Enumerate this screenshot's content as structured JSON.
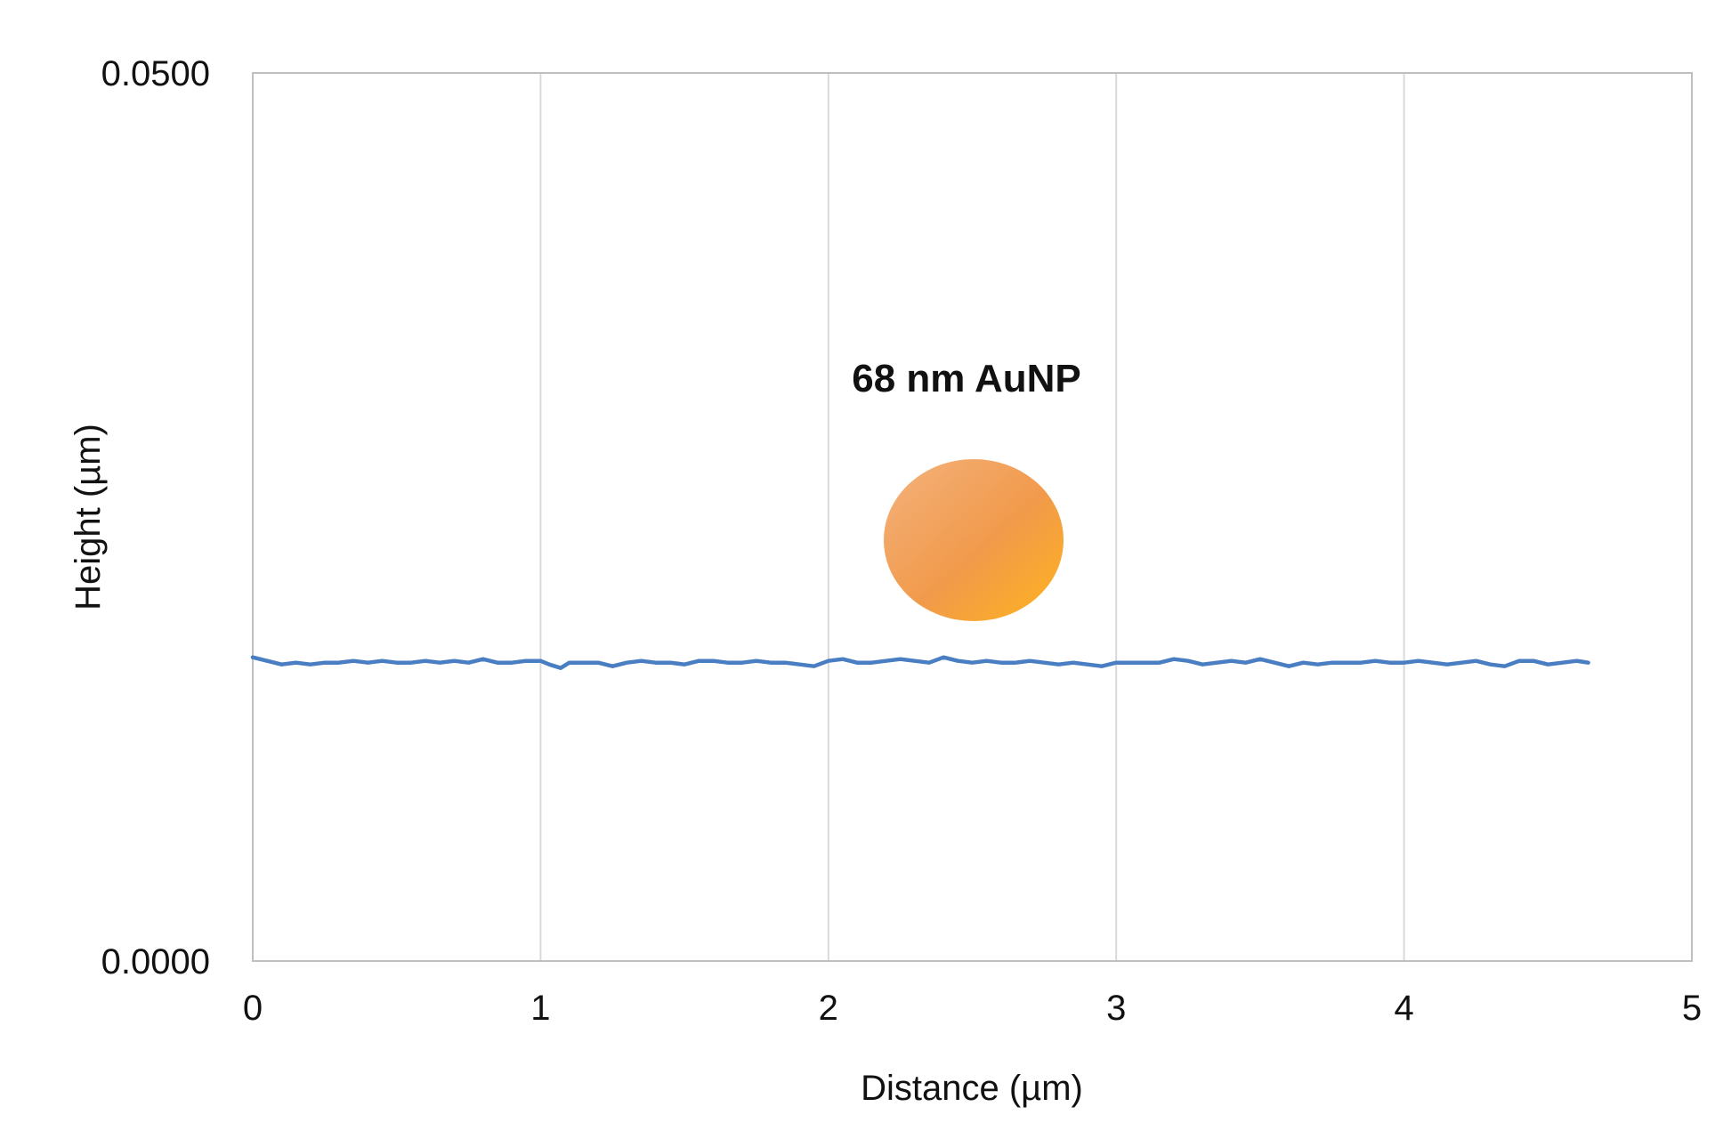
{
  "chart_data": {
    "type": "line",
    "title": "",
    "xlabel": "Distance (µm)",
    "ylabel": "Height (µm)",
    "xlim": [
      0,
      5
    ],
    "ylim": [
      0.0,
      0.05
    ],
    "x_ticks": [
      0,
      1,
      2,
      3,
      4,
      5
    ],
    "x_tick_labels": [
      "0",
      "1",
      "2",
      "3",
      "4",
      "5"
    ],
    "y_ticks": [
      0.0,
      0.05
    ],
    "y_tick_labels": [
      "0.0000",
      "0.0500"
    ],
    "grid": {
      "vertical": true,
      "horizontal": false
    },
    "series": [
      {
        "color": "#4A7EC2",
        "x": [
          0.0,
          0.05,
          0.1,
          0.15,
          0.2,
          0.25,
          0.3,
          0.35,
          0.4,
          0.45,
          0.5,
          0.55,
          0.6,
          0.65,
          0.7,
          0.75,
          0.8,
          0.85,
          0.9,
          0.95,
          1.0,
          1.03,
          1.07,
          1.1,
          1.15,
          1.2,
          1.25,
          1.3,
          1.35,
          1.4,
          1.45,
          1.5,
          1.55,
          1.6,
          1.65,
          1.7,
          1.75,
          1.8,
          1.85,
          1.9,
          1.95,
          2.0,
          2.05,
          2.1,
          2.15,
          2.2,
          2.25,
          2.3,
          2.35,
          2.4,
          2.45,
          2.5,
          2.55,
          2.6,
          2.65,
          2.7,
          2.75,
          2.8,
          2.85,
          2.9,
          2.95,
          3.0,
          3.05,
          3.1,
          3.15,
          3.2,
          3.25,
          3.3,
          3.35,
          3.4,
          3.45,
          3.5,
          3.55,
          3.6,
          3.65,
          3.7,
          3.75,
          3.8,
          3.85,
          3.9,
          3.95,
          4.0,
          4.05,
          4.1,
          4.15,
          4.2,
          4.25,
          4.3,
          4.35,
          4.4,
          4.45,
          4.5,
          4.55,
          4.6,
          4.64
        ],
        "y": [
          0.0171,
          0.0169,
          0.0167,
          0.0168,
          0.0167,
          0.0168,
          0.0168,
          0.0169,
          0.0168,
          0.0169,
          0.0168,
          0.0168,
          0.0169,
          0.0168,
          0.0169,
          0.0168,
          0.017,
          0.0168,
          0.0168,
          0.0169,
          0.0169,
          0.0167,
          0.0165,
          0.0168,
          0.0168,
          0.0168,
          0.0166,
          0.0168,
          0.0169,
          0.0168,
          0.0168,
          0.0167,
          0.0169,
          0.0169,
          0.0168,
          0.0168,
          0.0169,
          0.0168,
          0.0168,
          0.0167,
          0.0166,
          0.0169,
          0.017,
          0.0168,
          0.0168,
          0.0169,
          0.017,
          0.0169,
          0.0168,
          0.0171,
          0.0169,
          0.0168,
          0.0169,
          0.0168,
          0.0168,
          0.0169,
          0.0168,
          0.0167,
          0.0168,
          0.0167,
          0.0166,
          0.0168,
          0.0168,
          0.0168,
          0.0168,
          0.017,
          0.0169,
          0.0167,
          0.0168,
          0.0169,
          0.0168,
          0.017,
          0.0168,
          0.0166,
          0.0168,
          0.0167,
          0.0168,
          0.0168,
          0.0168,
          0.0169,
          0.0168,
          0.0168,
          0.0169,
          0.0168,
          0.0167,
          0.0168,
          0.0169,
          0.0167,
          0.0166,
          0.0169,
          0.0169,
          0.0167,
          0.0168,
          0.0169,
          0.0168
        ]
      }
    ],
    "annotations": [
      {
        "text": "68 nm AuNP"
      }
    ],
    "colors": {
      "series": "#4A7EC2",
      "grid": "#D9D9D9",
      "axis": "#BFBFBF",
      "particle_light": "#F4B27D",
      "particle_mid": "#F19A4B",
      "particle_dark": "#FFB41D"
    }
  }
}
